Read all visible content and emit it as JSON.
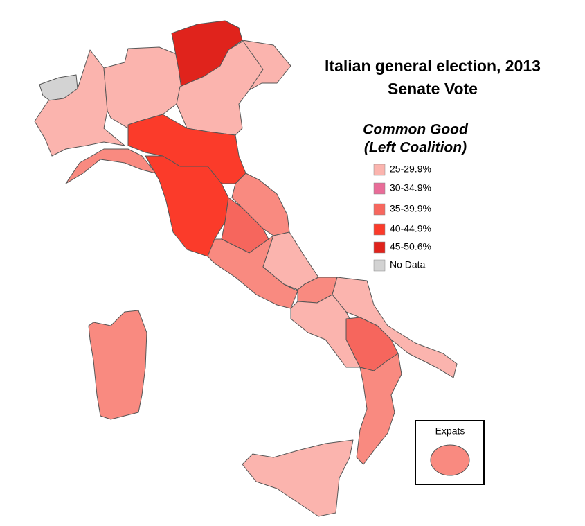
{
  "title": "Italian general election, 2013",
  "subtitle": "Senate Vote",
  "legend": {
    "title": [
      "Common Good",
      "(Left Coalition)"
    ],
    "items": [
      {
        "label": "25-29.9%",
        "color": "#fbb4ae"
      },
      {
        "label": "30-34.9%",
        "color": "#e96c98"
      },
      {
        "label": "35-39.9%",
        "color": "#f7675e"
      },
      {
        "label": "40-44.9%",
        "color": "#fb3b2a"
      },
      {
        "label": "45-50.6%",
        "color": "#e0231c"
      },
      {
        "label": "No Data",
        "color": "#d3d3d3"
      }
    ]
  },
  "expats": {
    "label": "Expats"
  }
}
